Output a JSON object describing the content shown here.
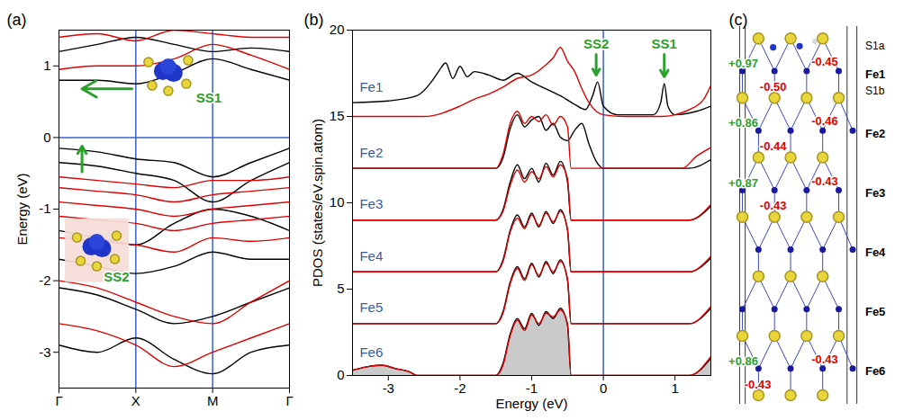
{
  "chart_data": [
    {
      "type": "line",
      "title": "(a)",
      "ylabel": "Energy (eV)",
      "xlim": [
        0,
        3
      ],
      "ylim": [
        -3.5,
        1.5
      ],
      "xticks": [
        {
          "value": 0,
          "label": "Γ"
        },
        {
          "value": 1,
          "label": "X"
        },
        {
          "value": 2,
          "label": "M"
        },
        {
          "value": 3,
          "label": "Γ"
        }
      ],
      "yticks": [
        -3,
        -2,
        -1,
        0,
        1
      ],
      "hlines": [
        0
      ],
      "vlines": [
        1,
        2
      ],
      "x": [
        0,
        0.5,
        1,
        1.5,
        2,
        2.5,
        3
      ],
      "series": [
        {
          "color": "#000000",
          "values": [
            -0.15,
            -0.2,
            -0.3,
            -0.35,
            -0.55,
            -0.35,
            -0.15
          ]
        },
        {
          "color": "#000000",
          "values": [
            -0.35,
            -0.4,
            -0.5,
            -0.6,
            -0.9,
            -0.6,
            -0.35
          ]
        },
        {
          "color": "#000000",
          "values": [
            -1.3,
            -1.4,
            -1.5,
            -1.2,
            -1.0,
            -1.1,
            -1.3
          ]
        },
        {
          "color": "#000000",
          "values": [
            -1.7,
            -1.8,
            -1.9,
            -1.8,
            -1.6,
            -1.7,
            -1.7
          ]
        },
        {
          "color": "#000000",
          "values": [
            -2.1,
            -2.2,
            -2.4,
            -2.6,
            -2.5,
            -2.3,
            -2.1
          ]
        },
        {
          "color": "#000000",
          "values": [
            -2.9,
            -3.0,
            -2.8,
            -3.1,
            -3.3,
            -3.0,
            -2.9
          ]
        },
        {
          "color": "#000000",
          "values": [
            0.8,
            0.8,
            0.75,
            0.9,
            1.1,
            0.95,
            0.8
          ]
        },
        {
          "color": "#000000",
          "values": [
            1.2,
            1.3,
            1.4,
            1.3,
            1.2,
            1.25,
            1.2
          ]
        },
        {
          "color": "#e00000",
          "values": [
            -0.55,
            -0.6,
            -0.65,
            -0.7,
            -0.6,
            -0.6,
            -0.55
          ]
        },
        {
          "color": "#e00000",
          "values": [
            -0.7,
            -0.75,
            -0.8,
            -0.9,
            -0.8,
            -0.75,
            -0.7
          ]
        },
        {
          "color": "#e00000",
          "values": [
            -0.9,
            -0.95,
            -1.0,
            -1.1,
            -1.0,
            -0.95,
            -0.9
          ]
        },
        {
          "color": "#e00000",
          "values": [
            -1.1,
            -1.15,
            -1.2,
            -1.3,
            -1.2,
            -1.15,
            -1.1
          ]
        },
        {
          "color": "#e00000",
          "values": [
            -1.4,
            -1.45,
            -1.5,
            -1.6,
            -1.4,
            -1.45,
            -1.4
          ]
        },
        {
          "color": "#e00000",
          "values": [
            -2.0,
            -2.1,
            -2.3,
            -2.5,
            -2.6,
            -2.3,
            -2.0
          ]
        },
        {
          "color": "#e00000",
          "values": [
            -2.6,
            -2.7,
            -2.9,
            -3.2,
            -3.0,
            -2.8,
            -2.6
          ]
        },
        {
          "color": "#e00000",
          "values": [
            0.95,
            1.0,
            1.0,
            1.1,
            1.3,
            1.15,
            0.95
          ]
        },
        {
          "color": "#e00000",
          "values": [
            1.4,
            1.45,
            1.35,
            1.5,
            1.45,
            1.4,
            1.4
          ]
        }
      ],
      "annotations": [
        {
          "text": "SS1",
          "x": 1.95,
          "y": 0.55,
          "color": "#2ca02c",
          "marker": "orbital",
          "arrow": {
            "x1": 0.95,
            "y1": 0.68,
            "x2": 0.3,
            "y2": 0.68
          }
        },
        {
          "text": "SS2",
          "x": 0.75,
          "y": -1.95,
          "color": "#2ca02c",
          "marker": "orbital",
          "arrow": {
            "x1": 0.3,
            "y1": -0.48,
            "x2": 0.3,
            "y2": -0.12
          }
        }
      ]
    },
    {
      "type": "line",
      "title": "(b)",
      "xlabel": "Energy (eV)",
      "ylabel": "PDOS (states/eV.spin.atom)",
      "xlim": [
        -3.5,
        1.5
      ],
      "ylim": [
        0,
        20
      ],
      "xticks": [
        -3,
        -2,
        -1,
        0,
        1
      ],
      "yticks": [
        0,
        5,
        10,
        15,
        20
      ],
      "vlines": [
        0
      ],
      "series": [
        {
          "color": "#000000",
          "x": [
            -3.5,
            -3.0,
            -2.6,
            -2.4,
            -2.3,
            -2.2,
            -2.1,
            -2.0,
            -1.9,
            -1.8,
            -1.6,
            -1.4,
            -1.2,
            -1.0,
            -0.8,
            -0.6,
            -0.4,
            -0.25,
            -0.15,
            -0.08,
            0.0,
            0.2,
            0.7,
            0.8,
            0.85,
            0.9,
            1.0,
            1.3,
            1.5
          ],
          "values": [
            15.8,
            15.9,
            16.2,
            17.0,
            17.6,
            18.1,
            17.2,
            17.9,
            17.3,
            17.6,
            17.4,
            17.1,
            17.5,
            17.0,
            16.6,
            16.2,
            15.7,
            15.4,
            16.2,
            17.0,
            15.6,
            15.1,
            15.1,
            15.8,
            16.9,
            15.6,
            15.1,
            15.3,
            15.6
          ]
        },
        {
          "color": "#e00000",
          "x": [
            -3.5,
            -2.5,
            -2.0,
            -1.8,
            -1.6,
            -1.4,
            -1.2,
            -1.0,
            -0.8,
            -0.7,
            -0.6,
            -0.5,
            -0.4,
            -0.3,
            -0.2,
            -0.1,
            0.0,
            0.3,
            0.8,
            1.0,
            1.2,
            1.4,
            1.5
          ],
          "values": [
            15.0,
            15.0,
            15.6,
            16.0,
            16.3,
            16.7,
            17.2,
            17.4,
            18.0,
            18.4,
            19.0,
            18.2,
            17.6,
            16.6,
            15.8,
            15.3,
            15.1,
            15.0,
            15.0,
            15.1,
            15.4,
            16.0,
            16.8
          ]
        },
        {
          "color": "#000000",
          "x": [
            -3.5,
            -1.5,
            -1.4,
            -1.3,
            -1.2,
            -1.1,
            -1.0,
            -0.9,
            -0.8,
            -0.7,
            -0.6,
            -0.5,
            -0.4,
            -0.3,
            -0.2,
            -0.1,
            0.0,
            1.2,
            1.5
          ],
          "values": [
            12.0,
            12.0,
            12.6,
            14.3,
            15.1,
            14.4,
            14.8,
            15.0,
            14.2,
            14.6,
            13.8,
            13.6,
            14.2,
            14.6,
            13.4,
            12.4,
            12.0,
            12.0,
            12.5
          ]
        },
        {
          "color": "#e00000",
          "x": [
            -3.5,
            -1.5,
            -1.4,
            -1.3,
            -1.2,
            -1.1,
            -1.0,
            -0.9,
            -0.8,
            -0.7,
            -0.6,
            -0.5,
            -0.45,
            1.1,
            1.3,
            1.5
          ],
          "values": [
            12.0,
            12.0,
            12.8,
            14.6,
            15.3,
            14.6,
            15.0,
            14.7,
            15.1,
            14.5,
            15.0,
            14.4,
            12.0,
            12.0,
            12.7,
            13.2
          ]
        },
        {
          "color": "#000000",
          "x": [
            -3.5,
            -1.5,
            -1.4,
            -1.3,
            -1.2,
            -1.1,
            -1.0,
            -0.9,
            -0.8,
            -0.7,
            -0.6,
            -0.5,
            -0.45,
            1.2,
            1.5
          ],
          "values": [
            9.0,
            9.0,
            9.6,
            11.2,
            12.2,
            11.4,
            12.0,
            11.2,
            12.3,
            11.6,
            12.4,
            11.2,
            9.0,
            9.0,
            9.8
          ]
        },
        {
          "color": "#e00000",
          "x": [
            -3.5,
            -1.5,
            -1.4,
            -1.3,
            -1.2,
            -1.1,
            -1.0,
            -0.9,
            -0.8,
            -0.7,
            -0.6,
            -0.5,
            -0.45,
            1.2,
            1.5
          ],
          "values": [
            9.0,
            9.0,
            9.5,
            11.0,
            11.9,
            11.2,
            11.8,
            11.4,
            12.1,
            11.5,
            12.2,
            11.4,
            9.0,
            9.0,
            9.9
          ]
        },
        {
          "color": "#000000",
          "x": [
            -3.5,
            -1.5,
            -1.4,
            -1.3,
            -1.2,
            -1.1,
            -1.0,
            -0.9,
            -0.8,
            -0.7,
            -0.6,
            -0.5,
            -0.45,
            1.2,
            1.5
          ],
          "values": [
            6.0,
            6.0,
            6.7,
            8.4,
            9.3,
            8.6,
            9.4,
            8.6,
            9.5,
            8.8,
            9.6,
            8.4,
            6.0,
            6.0,
            6.8
          ]
        },
        {
          "color": "#e00000",
          "x": [
            -3.5,
            -1.5,
            -1.4,
            -1.3,
            -1.2,
            -1.1,
            -1.0,
            -0.9,
            -0.8,
            -0.7,
            -0.6,
            -0.5,
            -0.45,
            1.2,
            1.5
          ],
          "values": [
            6.0,
            6.0,
            6.6,
            8.3,
            9.1,
            8.5,
            9.3,
            8.7,
            9.4,
            8.9,
            9.5,
            8.5,
            6.0,
            6.0,
            6.9
          ]
        },
        {
          "color": "#000000",
          "x": [
            -3.5,
            -1.5,
            -1.4,
            -1.3,
            -1.2,
            -1.1,
            -1.0,
            -0.9,
            -0.8,
            -0.7,
            -0.6,
            -0.5,
            -0.45,
            1.2,
            1.5
          ],
          "values": [
            3.0,
            3.0,
            3.7,
            5.4,
            6.3,
            5.6,
            6.5,
            5.7,
            6.6,
            5.9,
            6.7,
            5.5,
            3.0,
            3.0,
            3.9
          ]
        },
        {
          "color": "#e00000",
          "x": [
            -3.5,
            -1.5,
            -1.4,
            -1.3,
            -1.2,
            -1.1,
            -1.0,
            -0.9,
            -0.8,
            -0.7,
            -0.6,
            -0.5,
            -0.45,
            1.2,
            1.5
          ],
          "values": [
            3.0,
            3.0,
            3.6,
            5.3,
            6.2,
            5.5,
            6.4,
            5.8,
            6.5,
            6.0,
            6.6,
            5.6,
            3.0,
            3.0,
            4.0
          ]
        },
        {
          "color": "#000000",
          "type": "area",
          "x": [
            -3.5,
            -3.3,
            -3.1,
            -2.9,
            -2.7,
            -2.6,
            -1.5,
            -1.4,
            -1.3,
            -1.2,
            -1.1,
            -1.0,
            -0.9,
            -0.8,
            -0.7,
            -0.6,
            -0.5,
            -0.45,
            1.2,
            1.5
          ],
          "values": [
            0.3,
            0.5,
            0.6,
            0.4,
            0.2,
            0.0,
            0.0,
            0.7,
            2.4,
            3.3,
            2.7,
            3.6,
            2.9,
            3.7,
            3.3,
            3.9,
            2.9,
            0.0,
            0.0,
            1.0
          ]
        },
        {
          "color": "#e00000",
          "x": [
            -3.5,
            -3.3,
            -3.1,
            -2.9,
            -2.7,
            -2.6,
            -1.5,
            -1.4,
            -1.3,
            -1.2,
            -1.1,
            -1.0,
            -0.9,
            -0.8,
            -0.7,
            -0.6,
            -0.5,
            -0.45,
            1.2,
            1.5
          ],
          "values": [
            0.3,
            0.5,
            0.6,
            0.4,
            0.2,
            0.0,
            0.0,
            0.6,
            2.3,
            3.2,
            2.6,
            3.5,
            3.0,
            3.6,
            3.4,
            3.8,
            3.0,
            0.0,
            0.0,
            1.1
          ]
        }
      ],
      "annotations": [
        {
          "text": "SS2",
          "x": -0.1,
          "y": 19.2,
          "color": "#2ca02c",
          "arrow": {
            "x1": -0.1,
            "y1": 18.6,
            "x2": -0.1,
            "y2": 17.4
          }
        },
        {
          "text": "SS1",
          "x": 0.85,
          "y": 19.2,
          "color": "#2ca02c",
          "arrow": {
            "x1": 0.85,
            "y1": 18.6,
            "x2": 0.85,
            "y2": 17.3
          }
        },
        {
          "text": "Fe1",
          "x": -3.4,
          "y": 16.7,
          "color": "#3a5ba0"
        },
        {
          "text": "Fe2",
          "x": -3.4,
          "y": 12.9,
          "color": "#3a5ba0"
        },
        {
          "text": "Fe3",
          "x": -3.4,
          "y": 9.9,
          "color": "#3a5ba0"
        },
        {
          "text": "Fe4",
          "x": -3.4,
          "y": 6.9,
          "color": "#3a5ba0"
        },
        {
          "text": "Fe5",
          "x": -3.4,
          "y": 3.9,
          "color": "#3a5ba0"
        },
        {
          "text": "Fe6",
          "x": -3.4,
          "y": 1.3,
          "color": "#3a5ba0"
        }
      ]
    },
    {
      "type": "structure",
      "title": "(c)",
      "atom_labels": [
        "S1a",
        "S1b"
      ],
      "layers": [
        {
          "label": "Fe1",
          "fe_charge": {
            "value": 0.97,
            "label": "+0.97"
          },
          "s_charges": [
            {
              "value": -0.45,
              "label": "-0.45"
            },
            {
              "value": -0.5,
              "label": "-0.50"
            }
          ]
        },
        {
          "label": "Fe2",
          "fe_charge": {
            "value": 0.86,
            "label": "+0.86"
          },
          "s_charges": [
            {
              "value": -0.46,
              "label": "-0.46"
            },
            {
              "value": -0.44,
              "label": "-0.44"
            }
          ]
        },
        {
          "label": "Fe3",
          "fe_charge": {
            "value": 0.87,
            "label": "+0.87"
          },
          "s_charges": [
            {
              "value": -0.43,
              "label": "-0.43"
            },
            {
              "value": -0.43,
              "label": "-0.43"
            }
          ]
        },
        {
          "label": "Fe4"
        },
        {
          "label": "Fe5"
        },
        {
          "label": "Fe6",
          "fe_charge": {
            "value": 0.86,
            "label": "+0.86"
          },
          "s_charges": [
            {
              "value": -0.43,
              "label": "-0.43"
            },
            {
              "value": -0.43,
              "label": "-0.43"
            }
          ]
        }
      ]
    }
  ]
}
